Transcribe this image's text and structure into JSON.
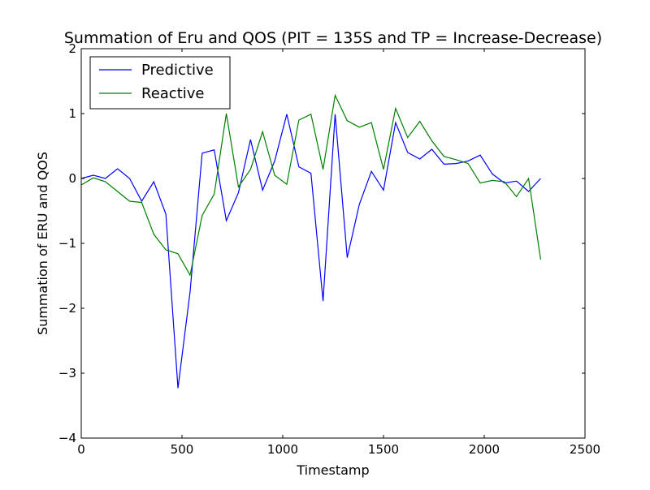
{
  "chart_data": {
    "type": "line",
    "title": "Summation of Eru and QOS (PIT = 135S and TP = Increase-Decrease)",
    "xlabel": "Timestamp",
    "ylabel": "Summation of ERU and QOS",
    "xlim": [
      0,
      2500
    ],
    "ylim": [
      -4,
      2
    ],
    "xticks": [
      0,
      500,
      1000,
      1500,
      2000,
      2500
    ],
    "xtick_labels": [
      "0",
      "500",
      "1000",
      "1500",
      "2000",
      "2500"
    ],
    "yticks": [
      -4,
      -3,
      -2,
      -1,
      0,
      1,
      2
    ],
    "ytick_labels": [
      "−4",
      "−3",
      "−2",
      "−1",
      "0",
      "1",
      "2"
    ],
    "grid": false,
    "legend_position": "top-left",
    "x": [
      0,
      60,
      120,
      180,
      240,
      300,
      360,
      420,
      480,
      540,
      600,
      660,
      720,
      780,
      840,
      900,
      960,
      1020,
      1080,
      1140,
      1200,
      1260,
      1320,
      1380,
      1440,
      1500,
      1560,
      1620,
      1680,
      1740,
      1800,
      1860,
      1920,
      1980,
      2040,
      2100,
      2160,
      2220,
      2280
    ],
    "series": [
      {
        "name": "Predictive",
        "color": "#0000ff",
        "values": [
          0.0,
          0.05,
          0.0,
          0.15,
          0.0,
          -0.35,
          -0.05,
          -0.55,
          -3.23,
          -1.75,
          0.39,
          0.44,
          -0.65,
          -0.22,
          0.6,
          -0.18,
          0.27,
          0.99,
          0.18,
          0.08,
          -1.89,
          0.99,
          -1.22,
          -0.4,
          0.11,
          -0.18,
          0.86,
          0.4,
          0.3,
          0.45,
          0.22,
          0.23,
          0.27,
          0.36,
          0.07,
          -0.07,
          -0.04,
          -0.2,
          0.0
        ]
      },
      {
        "name": "Reactive",
        "color": "#008000",
        "values": [
          -0.1,
          0.01,
          -0.05,
          -0.2,
          -0.35,
          -0.37,
          -0.86,
          -1.1,
          -1.16,
          -1.49,
          -0.57,
          -0.24,
          1.0,
          -0.13,
          0.14,
          0.72,
          0.05,
          -0.09,
          0.9,
          0.99,
          0.14,
          1.28,
          0.89,
          0.79,
          0.86,
          0.14,
          1.08,
          0.63,
          0.88,
          0.58,
          0.34,
          0.29,
          0.23,
          -0.07,
          -0.03,
          -0.05,
          -0.28,
          0.0,
          -1.25
        ]
      }
    ]
  }
}
